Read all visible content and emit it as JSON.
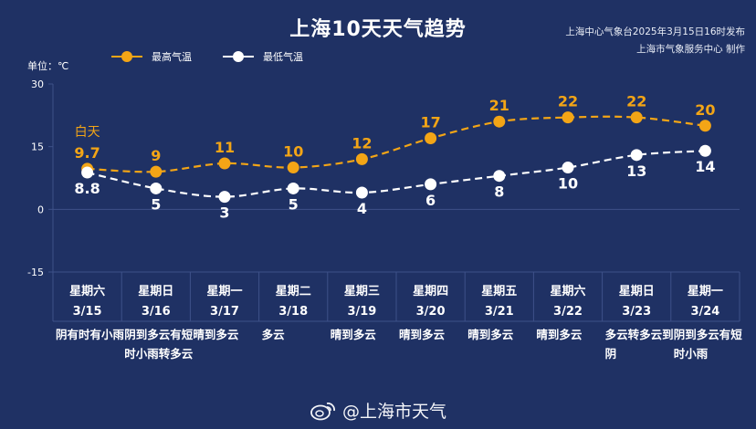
{
  "title": "上海10天天气趋势",
  "issuer_line1": "上海中心气象台2025年3月15日16时发布",
  "issuer_line2": "上海市气象服务中心 制作",
  "unit_label": "单位：℃",
  "daytime_label": "白天",
  "footer_text": "@上海市天气",
  "footer_icon": "weibo-icon",
  "colors": {
    "background": "#1f3164",
    "high": "#f3a516",
    "low": "#ffffff",
    "grid": "#3e5189",
    "axis_text": "#ffffff"
  },
  "chart_data": {
    "type": "line",
    "categories": [
      "3/15",
      "3/16",
      "3/17",
      "3/18",
      "3/19",
      "3/20",
      "3/21",
      "3/22",
      "3/23",
      "3/24"
    ],
    "weekdays": [
      "星期六",
      "星期日",
      "星期一",
      "星期二",
      "星期三",
      "星期四",
      "星期五",
      "星期六",
      "星期日",
      "星期一"
    ],
    "conditions": [
      "阴有时有小雨",
      "阴到多云有短时小雨转多云",
      "晴到多云",
      "多云",
      "晴到多云",
      "晴到多云",
      "晴到多云",
      "晴到多云",
      "多云转多云到阴",
      "阴到多云有短时小雨"
    ],
    "series": [
      {
        "name": "最高气温",
        "color": "#f3a516",
        "values": [
          9.7,
          9,
          11,
          10,
          12,
          17,
          21,
          22,
          22,
          20
        ]
      },
      {
        "name": "最低气温",
        "color": "#ffffff",
        "values": [
          8.8,
          5,
          3,
          5,
          4,
          6,
          8,
          10,
          13,
          14
        ]
      }
    ],
    "ylim": [
      -15,
      30
    ],
    "yticks": [
      30,
      15,
      0,
      -15
    ],
    "ylabel": "单位：℃",
    "legend_position": "top-left"
  }
}
